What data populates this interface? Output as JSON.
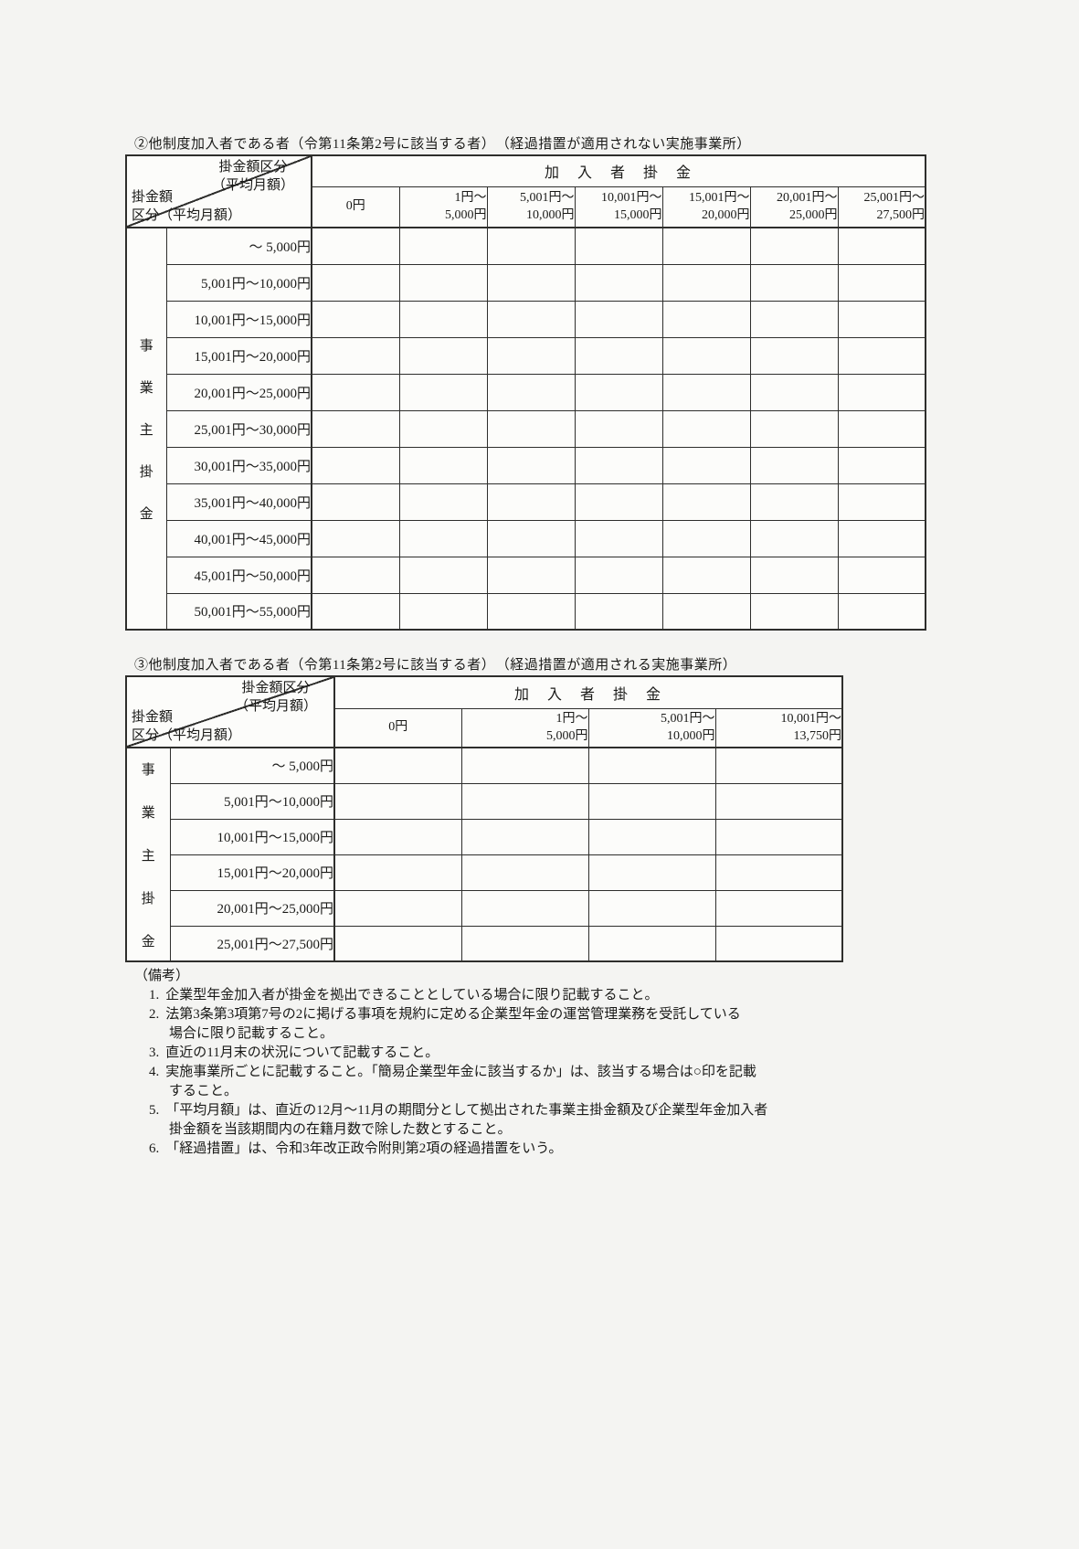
{
  "colors": {
    "page_background": "#f4f4f2",
    "table_background": "#fcfcfa",
    "border": "#2e2e2c",
    "text": "#1a1a18"
  },
  "tables": [
    {
      "title": "②他制度加入者である者（令第11条第2号に該当する者）　（経過措置が適用されない実施事業所）",
      "corner": {
        "top_line1": "掛金額区分",
        "top_line2": "（平均月額）",
        "bottom_line1": "掛金額",
        "bottom_line2": "区分（平均月額）"
      },
      "participant_header": "加　入　者　掛　金",
      "columns": [
        [
          "0円"
        ],
        [
          "1円～",
          "5,000円"
        ],
        [
          "5,001円～",
          "10,000円"
        ],
        [
          "10,001円～",
          "15,000円"
        ],
        [
          "15,001円～",
          "20,000円"
        ],
        [
          "20,001円～",
          "25,000円"
        ],
        [
          "25,001円～",
          "27,500円"
        ]
      ],
      "axis_label": [
        "事",
        "業",
        "主",
        "掛",
        "金"
      ],
      "rows": [
        "～ 5,000円",
        "5,001円～10,000円",
        "10,001円～15,000円",
        "15,001円～20,000円",
        "20,001円～25,000円",
        "25,001円～30,000円",
        "30,001円～35,000円",
        "35,001円～40,000円",
        "40,001円～45,000円",
        "45,001円～50,000円",
        "50,001円～55,000円"
      ]
    },
    {
      "title": "③他制度加入者である者（令第11条第2号に該当する者）　（経過措置が適用される実施事業所）",
      "corner": {
        "top_line1": "掛金額区分",
        "top_line2": "（平均月額）",
        "bottom_line1": "掛金額",
        "bottom_line2": "区分（平均月額）"
      },
      "participant_header": "加　入　者　掛　金",
      "columns": [
        [
          "0円"
        ],
        [
          "1円～",
          "5,000円"
        ],
        [
          "5,001円～",
          "10,000円"
        ],
        [
          "10,001円～",
          "13,750円"
        ]
      ],
      "axis_label": [
        "事",
        "業",
        "主",
        "掛",
        "金"
      ],
      "rows": [
        "～ 5,000円",
        "5,001円～10,000円",
        "10,001円～15,000円",
        "15,001円～20,000円",
        "20,001円～25,000円",
        "25,001円～27,500円"
      ]
    }
  ],
  "notes": {
    "heading": "（備考）",
    "items": [
      {
        "num": "1.",
        "lines": [
          "企業型年金加入者が掛金を拠出できることとしている場合に限り記載すること。"
        ]
      },
      {
        "num": "2.",
        "lines": [
          "法第3条第3項第7号の2に掲げる事項を規約に定める企業型年金の運営管理業務を受託している",
          "場合に限り記載すること。"
        ]
      },
      {
        "num": "3.",
        "lines": [
          "直近の11月末の状況について記載すること。"
        ]
      },
      {
        "num": "4.",
        "lines": [
          "実施事業所ごとに記載すること。「簡易企業型年金に該当するか」は、該当する場合は○印を記載",
          "すること。"
        ]
      },
      {
        "num": "5.",
        "lines": [
          "「平均月額」は、直近の12月～11月の期間分として拠出された事業主掛金額及び企業型年金加入者",
          "掛金額を当該期間内の在籍月数で除した数とすること。"
        ]
      },
      {
        "num": "6.",
        "lines": [
          "「経過措置」は、令和3年改正政令附則第2項の経過措置をいう。"
        ]
      }
    ]
  }
}
